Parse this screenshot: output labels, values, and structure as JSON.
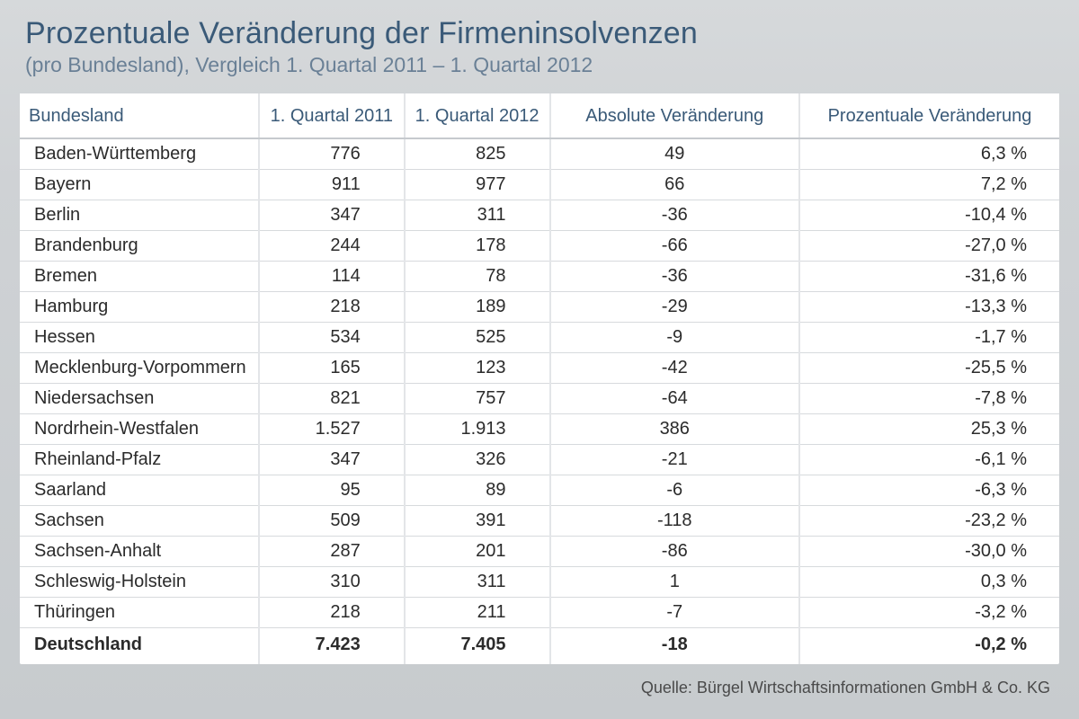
{
  "header": {
    "title": "Prozentuale Veränderung der Firmeninsolvenzen",
    "subtitle": "(pro Bundesland), Vergleich 1. Quartal 2011 – 1. Quartal 2012"
  },
  "table": {
    "type": "table",
    "background_color": "#ffffff",
    "page_background": "#c9cdd0",
    "row_border_color": "#d7dadd",
    "header_border_color": "#c6cace",
    "column_separator_color": "#e3e5e8",
    "header_text_color": "#3a5a78",
    "body_text_color": "#2b2b2b",
    "header_fontsize": 20,
    "body_fontsize": 20,
    "columns": [
      {
        "key": "name",
        "label": "Bundesland",
        "align": "left",
        "width_pct": 23
      },
      {
        "key": "q2011",
        "label": "1. Quartal 2011",
        "align": "right",
        "width_pct": 14
      },
      {
        "key": "q2012",
        "label": "1. Quartal 2012",
        "align": "right",
        "width_pct": 14
      },
      {
        "key": "abs",
        "label": "Absolute Veränderung",
        "align": "center",
        "width_pct": 24
      },
      {
        "key": "pct",
        "label": "Prozentuale Veränderung",
        "align": "right",
        "width_pct": 25
      }
    ],
    "rows": [
      {
        "name": "Baden-Württemberg",
        "q2011": "776",
        "q2012": "825",
        "abs": "49",
        "pct": "6,3 %"
      },
      {
        "name": "Bayern",
        "q2011": "911",
        "q2012": "977",
        "abs": "66",
        "pct": "7,2 %"
      },
      {
        "name": "Berlin",
        "q2011": "347",
        "q2012": "311",
        "abs": "-36",
        "pct": "-10,4 %"
      },
      {
        "name": "Brandenburg",
        "q2011": "244",
        "q2012": "178",
        "abs": "-66",
        "pct": "-27,0 %"
      },
      {
        "name": "Bremen",
        "q2011": "114",
        "q2012": "78",
        "abs": "-36",
        "pct": "-31,6 %"
      },
      {
        "name": "Hamburg",
        "q2011": "218",
        "q2012": "189",
        "abs": "-29",
        "pct": "-13,3 %"
      },
      {
        "name": "Hessen",
        "q2011": "534",
        "q2012": "525",
        "abs": "-9",
        "pct": "-1,7 %"
      },
      {
        "name": "Mecklenburg-Vorpommern",
        "q2011": "165",
        "q2012": "123",
        "abs": "-42",
        "pct": "-25,5 %"
      },
      {
        "name": "Niedersachsen",
        "q2011": "821",
        "q2012": "757",
        "abs": "-64",
        "pct": "-7,8 %"
      },
      {
        "name": "Nordrhein-Westfalen",
        "q2011": "1.527",
        "q2012": "1.913",
        "abs": "386",
        "pct": "25,3 %"
      },
      {
        "name": "Rheinland-Pfalz",
        "q2011": "347",
        "q2012": "326",
        "abs": "-21",
        "pct": "-6,1 %"
      },
      {
        "name": "Saarland",
        "q2011": "95",
        "q2012": "89",
        "abs": "-6",
        "pct": "-6,3 %"
      },
      {
        "name": "Sachsen",
        "q2011": "509",
        "q2012": "391",
        "abs": "-118",
        "pct": "-23,2 %"
      },
      {
        "name": "Sachsen-Anhalt",
        "q2011": "287",
        "q2012": "201",
        "abs": "-86",
        "pct": "-30,0 %"
      },
      {
        "name": "Schleswig-Holstein",
        "q2011": "310",
        "q2012": "311",
        "abs": "1",
        "pct": "0,3 %"
      },
      {
        "name": "Thüringen",
        "q2011": "218",
        "q2012": "211",
        "abs": "-7",
        "pct": "-3,2 %"
      },
      {
        "name": "Deutschland",
        "q2011": "7.423",
        "q2012": "7.405",
        "abs": "-18",
        "pct": "-0,2 %",
        "bold": true
      }
    ]
  },
  "source": "Quelle: Bürgel Wirtschaftsinformationen GmbH & Co. KG"
}
